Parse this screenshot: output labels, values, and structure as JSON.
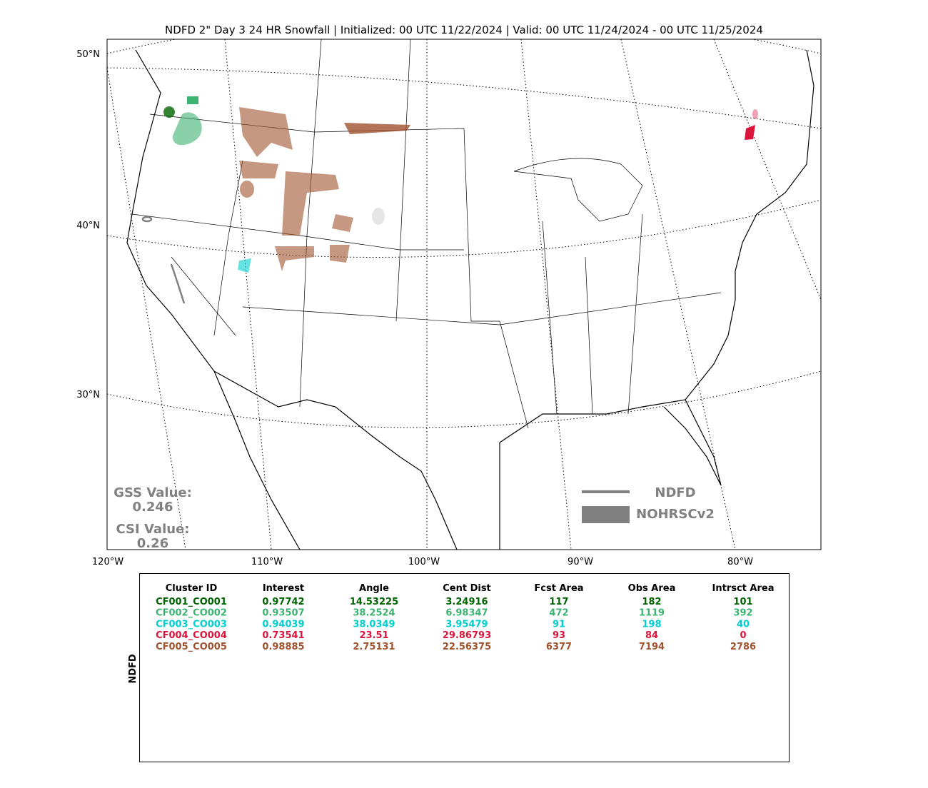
{
  "title": "NDFD 2\" Day 3 24 HR Snowfall | Initialized: 00 UTC 11/22/2024 | Valid: 00 UTC 11/24/2024 - 00 UTC 11/25/2024",
  "map": {
    "lat_labels": [
      "50°N",
      "40°N",
      "30°N"
    ],
    "lon_labels": [
      "120°W",
      "110°W",
      "100°W",
      "90°W",
      "80°W"
    ]
  },
  "scores": {
    "gss_label": "GSS Value:",
    "gss": 0.246,
    "csi_label": "CSI Value:",
    "csi": 0.26
  },
  "legend": {
    "line": "NDFD",
    "area": "NOHRSCv2"
  },
  "table": {
    "side_label": "NDFD",
    "header": [
      "Cluster ID",
      "Interest",
      "Angle",
      "Cent Dist",
      "Fcst Area",
      "Obs Area",
      "Intrsct Area"
    ],
    "rows": [
      {
        "color": "#006400",
        "cells": [
          "CF001_CO001",
          0.97742,
          14.53225,
          3.24916,
          117,
          182,
          101
        ]
      },
      {
        "color": "#3cb371",
        "cells": [
          "CF002_CO002",
          0.93507,
          38.2524,
          6.98347,
          472,
          1119,
          392
        ]
      },
      {
        "color": "#00ced1",
        "cells": [
          "CF003_CO003",
          0.94039,
          38.0349,
          3.95479,
          91,
          198,
          40
        ]
      },
      {
        "color": "#dc143c",
        "cells": [
          "CF004_CO004",
          0.73541,
          23.51,
          29.86793,
          93,
          84,
          0
        ]
      },
      {
        "color": "#a0522d",
        "cells": [
          "CF005_CO005",
          0.98885,
          2.75131,
          22.56375,
          6377,
          7194,
          2786
        ]
      }
    ]
  }
}
